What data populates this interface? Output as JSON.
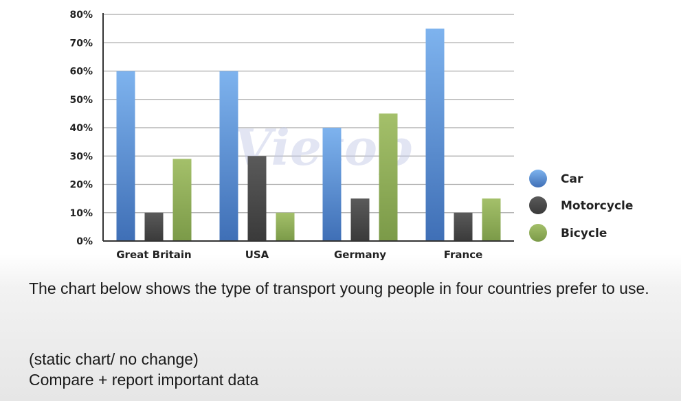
{
  "chart_data": {
    "type": "bar",
    "categories": [
      "Great Britain",
      "USA",
      "Germany",
      "France"
    ],
    "series": [
      {
        "name": "Car",
        "values": [
          60,
          60,
          40,
          75
        ],
        "color": "#5b8fd6"
      },
      {
        "name": "Motorcycle",
        "values": [
          10,
          30,
          15,
          10
        ],
        "color": "#454545"
      },
      {
        "name": "Bicycle",
        "values": [
          29,
          10,
          45,
          15
        ],
        "color": "#8aab54"
      }
    ],
    "yticks": [
      "0%",
      "10%",
      "20%",
      "30%",
      "40%",
      "50%",
      "60%",
      "70%",
      "80%"
    ],
    "ylim": [
      0,
      80
    ],
    "grid": true,
    "legend_position": "right",
    "title": "",
    "xlabel": "",
    "ylabel": ""
  },
  "watermark": "Vietop",
  "caption": "The chart below shows the type of transport young people in four countries prefer to use.",
  "notes": [
    "(static chart/ no change)",
    "Compare + report important data"
  ]
}
